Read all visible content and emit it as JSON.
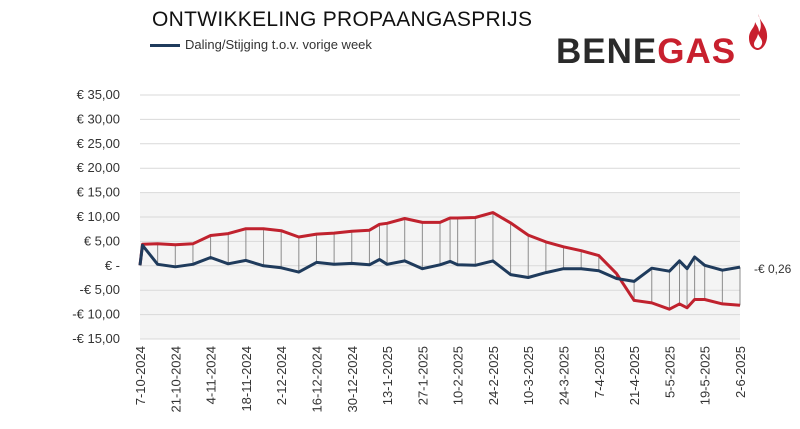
{
  "title": "ONTWIKKELING PROPAANGASPRIJS",
  "legend": {
    "label": "Daling/Stijging t.o.v. vorige week"
  },
  "logo": {
    "part1": "BENE",
    "part2": "GAS"
  },
  "end_label": "-€ 0,26",
  "colors": {
    "weekly_change": "#1f3b5c",
    "cumulative": "#c0222e",
    "logo_dark": "#2a2a2a",
    "logo_red": "#c8202e"
  },
  "chart_data": {
    "type": "line",
    "title": "ONTWIKKELING PROPAANGASPRIJS",
    "ylim": [
      -15,
      35
    ],
    "yticks": [
      -15,
      -10,
      -5,
      0,
      5,
      10,
      15,
      20,
      25,
      30,
      35
    ],
    "ytick_labels": [
      "-€ 15,00",
      "-€ 10,00",
      "-€ 5,00",
      "€ -",
      "€ 5,00",
      "€ 10,00",
      "€ 15,00",
      "€ 20,00",
      "€ 25,00",
      "€ 30,00",
      "€ 35,00"
    ],
    "xtick_labels": [
      "7-10-2024",
      "21-10-2024",
      "4-11-2024",
      "18-11-2024",
      "2-12-2024",
      "16-12-2024",
      "30-12-2024",
      "13-1-2025",
      "27-1-2025",
      "10-2-2025",
      "24-2-2025",
      "10-3-2025",
      "24-3-2025",
      "7-4-2025",
      "21-4-2025",
      "5-5-2025",
      "19-5-2025",
      "2-6-2025"
    ],
    "x": [
      "7-10-2024",
      "8-10-2024",
      "14-10-2024",
      "21-10-2024",
      "28-10-2024",
      "4-11-2024",
      "11-11-2024",
      "18-11-2024",
      "25-11-2024",
      "2-12-2024",
      "9-12-2024",
      "16-12-2024",
      "23-12-2024",
      "30-12-2024",
      "6-1-2025",
      "10-1-2025",
      "13-1-2025",
      "20-1-2025",
      "27-1-2025",
      "3-2-2025",
      "7-2-2025",
      "10-2-2025",
      "17-2-2025",
      "24-2-2025",
      "3-3-2025",
      "10-3-2025",
      "17-3-2025",
      "24-3-2025",
      "31-3-2025",
      "7-4-2025",
      "14-4-2025",
      "21-4-2025",
      "28-4-2025",
      "5-5-2025",
      "9-5-2025",
      "12-5-2025",
      "15-5-2025",
      "19-5-2025",
      "26-5-2025",
      "2-6-2025"
    ],
    "series": [
      {
        "name": "Daling/Stijging t.o.v. vorige week",
        "values": [
          0.1,
          4.2,
          0.3,
          -0.2,
          0.3,
          1.7,
          0.4,
          1.1,
          0.0,
          -0.4,
          -1.3,
          0.7,
          0.3,
          0.5,
          0.2,
          1.3,
          0.3,
          1.0,
          -0.6,
          0.2,
          0.9,
          0.2,
          0.1,
          1.0,
          -1.8,
          -2.4,
          -1.4,
          -0.6,
          -0.6,
          -1.0,
          -2.6,
          -3.2,
          -0.5,
          -1.1,
          1.0,
          -0.6,
          1.8,
          0.1,
          -0.9,
          -0.26
        ]
      },
      {
        "values": [
          0.1,
          4.4,
          4.5,
          4.3,
          4.5,
          6.2,
          6.6,
          7.6,
          7.6,
          7.2,
          5.9,
          6.5,
          6.7,
          7.1,
          7.3,
          8.5,
          8.7,
          9.7,
          8.9,
          8.9,
          9.8,
          9.8,
          9.9,
          10.9,
          8.8,
          6.3,
          4.9,
          3.9,
          3.1,
          2.1,
          -1.6,
          -7.1,
          -7.6,
          -8.9,
          -7.8,
          -8.6,
          -6.9,
          -6.9,
          -7.8,
          -8.1
        ]
      }
    ],
    "grid": true,
    "legend_position": "top-left"
  }
}
